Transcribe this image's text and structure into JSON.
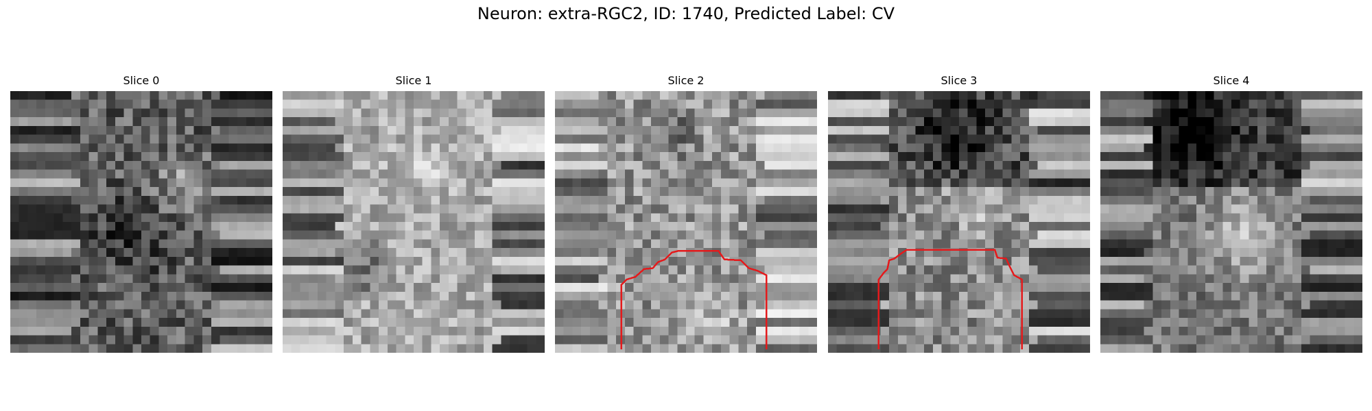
{
  "figure": {
    "suptitle": "Neuron: extra-RGC2, ID: 1740, Predicted Label: CV"
  },
  "panels": [
    {
      "title": "Slice 0",
      "has_contour": false
    },
    {
      "title": "Slice 1",
      "has_contour": false
    },
    {
      "title": "Slice 2",
      "has_contour": true
    },
    {
      "title": "Slice 3",
      "has_contour": true
    },
    {
      "title": "Slice 4",
      "has_contour": false
    }
  ],
  "colors": {
    "contour": "#e41a1c",
    "background": "#ffffff"
  },
  "image_kind": "grayscale 30x30 pixel slices"
}
